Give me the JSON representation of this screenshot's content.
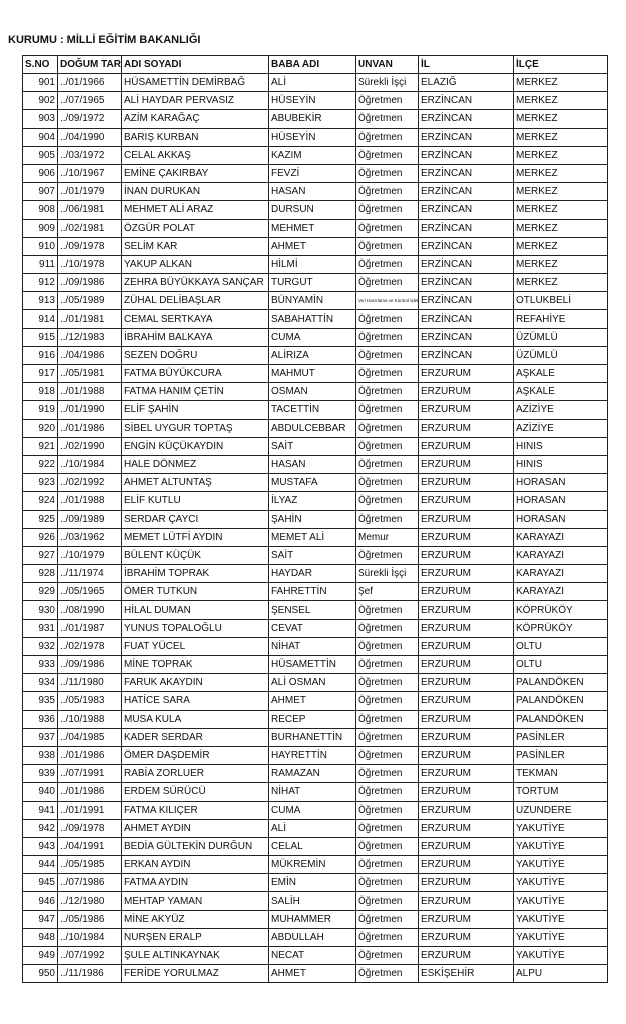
{
  "header": {
    "title": "KURUMU : MİLLİ EĞİTİM BAKANLIĞI"
  },
  "table": {
    "columns": [
      "S.NO",
      "DOĞUM TAR.",
      "ADI SOYADI",
      "BABA ADI",
      "UNVAN",
      "İL",
      "İLÇE"
    ],
    "rows": [
      [
        "901",
        "../01/1966",
        "HÜSAMETTİN DEMİRBAĞ",
        "ALİ",
        "Sürekli İşçi",
        "ELAZIĞ",
        "MERKEZ"
      ],
      [
        "902",
        "../07/1965",
        "ALİ HAYDAR PERVASIZ",
        "HÜSEYİN",
        "Öğretmen",
        "ERZİNCAN",
        "MERKEZ"
      ],
      [
        "903",
        "../09/1972",
        "AZİM KARAĞAÇ",
        "ABUBEKİR",
        "Öğretmen",
        "ERZİNCAN",
        "MERKEZ"
      ],
      [
        "904",
        "../04/1990",
        "BARIŞ KURBAN",
        "HÜSEYİN",
        "Öğretmen",
        "ERZİNCAN",
        "MERKEZ"
      ],
      [
        "905",
        "../03/1972",
        "CELAL AKKAŞ",
        "KAZIM",
        "Öğretmen",
        "ERZİNCAN",
        "MERKEZ"
      ],
      [
        "906",
        "../10/1967",
        "EMİNE ÇAKIRBAY",
        "FEVZİ",
        "Öğretmen",
        "ERZİNCAN",
        "MERKEZ"
      ],
      [
        "907",
        "../01/1979",
        "İNAN DURUKAN",
        "HASAN",
        "Öğretmen",
        "ERZİNCAN",
        "MERKEZ"
      ],
      [
        "908",
        "../06/1981",
        "MEHMET ALİ ARAZ",
        "DURSUN",
        "Öğretmen",
        "ERZİNCAN",
        "MERKEZ"
      ],
      [
        "909",
        "../02/1981",
        "ÖZGÜR POLAT",
        "MEHMET",
        "Öğretmen",
        "ERZİNCAN",
        "MERKEZ"
      ],
      [
        "910",
        "../09/1978",
        "SELİM KAR",
        "AHMET",
        "Öğretmen",
        "ERZİNCAN",
        "MERKEZ"
      ],
      [
        "911",
        "../10/1978",
        "YAKUP ALKAN",
        "HİLMİ",
        "Öğretmen",
        "ERZİNCAN",
        "MERKEZ"
      ],
      [
        "912",
        "../09/1986",
        "ZEHRA BÜYÜKKAYA SANÇAR",
        "TURGUT",
        "Öğretmen",
        "ERZİNCAN",
        "MERKEZ"
      ],
      [
        "913",
        "../05/1989",
        "ZÜHAL DELİBAŞLAR",
        "BÜNYAMİN",
        "Veri Hazırlama ve Kontrol İşletmeni",
        "ERZİNCAN",
        "OTLUKBELİ"
      ],
      [
        "914",
        "../01/1981",
        "CEMAL SERTKAYA",
        "SABAHATTİN",
        "Öğretmen",
        "ERZİNCAN",
        "REFAHİYE"
      ],
      [
        "915",
        "../12/1983",
        "İBRAHİM BALKAYA",
        "CUMA",
        "Öğretmen",
        "ERZİNCAN",
        "ÜZÜMLÜ"
      ],
      [
        "916",
        "../04/1986",
        "SEZEN DOĞRU",
        "ALİRIZA",
        "Öğretmen",
        "ERZİNCAN",
        "ÜZÜMLÜ"
      ],
      [
        "917",
        "../05/1981",
        "FATMA BÜYÜKCURA",
        "MAHMUT",
        "Öğretmen",
        "ERZURUM",
        "AŞKALE"
      ],
      [
        "918",
        "../01/1988",
        "FATMA HANIM ÇETİN",
        "OSMAN",
        "Öğretmen",
        "ERZURUM",
        "AŞKALE"
      ],
      [
        "919",
        "../01/1990",
        "ELİF ŞAHİN",
        "TACETTİN",
        "Öğretmen",
        "ERZURUM",
        "AZİZİYE"
      ],
      [
        "920",
        "../01/1986",
        "SİBEL UYGUR TOPTAŞ",
        "ABDULCEBBAR",
        "Öğretmen",
        "ERZURUM",
        "AZİZİYE"
      ],
      [
        "921",
        "../02/1990",
        "ENGİN KÜÇÜKAYDIN",
        "SAİT",
        "Öğretmen",
        "ERZURUM",
        "HINIS"
      ],
      [
        "922",
        "../10/1984",
        "HALE DÖNMEZ",
        "HASAN",
        "Öğretmen",
        "ERZURUM",
        "HINIS"
      ],
      [
        "923",
        "../02/1992",
        "AHMET ALTUNTAŞ",
        "MUSTAFA",
        "Öğretmen",
        "ERZURUM",
        "HORASAN"
      ],
      [
        "924",
        "../01/1988",
        "ELİF KUTLU",
        "İLYAZ",
        "Öğretmen",
        "ERZURUM",
        "HORASAN"
      ],
      [
        "925",
        "../09/1989",
        "SERDAR ÇAYCI",
        "ŞAHİN",
        "Öğretmen",
        "ERZURUM",
        "HORASAN"
      ],
      [
        "926",
        "../03/1962",
        "MEMET LÜTFİ AYDIN",
        "MEMET ALİ",
        "Memur",
        "ERZURUM",
        "KARAYAZI"
      ],
      [
        "927",
        "../10/1979",
        "BÜLENT KÜÇÜK",
        "SAİT",
        "Öğretmen",
        "ERZURUM",
        "KARAYAZI"
      ],
      [
        "928",
        "../11/1974",
        "İBRAHİM TOPRAK",
        "HAYDAR",
        "Sürekli İşçi",
        "ERZURUM",
        "KARAYAZI"
      ],
      [
        "929",
        "../05/1965",
        "ÖMER TUTKUN",
        "FAHRETTİN",
        "Şef",
        "ERZURUM",
        "KARAYAZI"
      ],
      [
        "930",
        "../08/1990",
        "HİLAL DUMAN",
        "ŞENSEL",
        "Öğretmen",
        "ERZURUM",
        "KÖPRÜKÖY"
      ],
      [
        "931",
        "../01/1987",
        "YUNUS TOPALOĞLU",
        "CEVAT",
        "Öğretmen",
        "ERZURUM",
        "KÖPRÜKÖY"
      ],
      [
        "932",
        "../02/1978",
        "FUAT YÜCEL",
        "NİHAT",
        "Öğretmen",
        "ERZURUM",
        "OLTU"
      ],
      [
        "933",
        "../09/1986",
        "MİNE TOPRAK",
        "HÜSAMETTİN",
        "Öğretmen",
        "ERZURUM",
        "OLTU"
      ],
      [
        "934",
        "../11/1980",
        "FARUK AKAYDIN",
        "ALİ OSMAN",
        "Öğretmen",
        "ERZURUM",
        "PALANDÖKEN"
      ],
      [
        "935",
        "../05/1983",
        "HATİCE SARA",
        "AHMET",
        "Öğretmen",
        "ERZURUM",
        "PALANDÖKEN"
      ],
      [
        "936",
        "../10/1988",
        "MUSA KULA",
        "RECEP",
        "Öğretmen",
        "ERZURUM",
        "PALANDÖKEN"
      ],
      [
        "937",
        "../04/1985",
        "KADER SERDAR",
        "BURHANETTİN",
        "Öğretmen",
        "ERZURUM",
        "PASİNLER"
      ],
      [
        "938",
        "../01/1986",
        "ÖMER DAŞDEMİR",
        "HAYRETTİN",
        "Öğretmen",
        "ERZURUM",
        "PASİNLER"
      ],
      [
        "939",
        "../07/1991",
        "RABİA ZORLUER",
        "RAMAZAN",
        "Öğretmen",
        "ERZURUM",
        "TEKMAN"
      ],
      [
        "940",
        "../01/1986",
        "ERDEM SÜRÜCÜ",
        "NİHAT",
        "Öğretmen",
        "ERZURUM",
        "TORTUM"
      ],
      [
        "941",
        "../01/1991",
        "FATMA KILIÇER",
        "CUMA",
        "Öğretmen",
        "ERZURUM",
        "UZUNDERE"
      ],
      [
        "942",
        "../09/1978",
        "AHMET AYDIN",
        "ALİ",
        "Öğretmen",
        "ERZURUM",
        "YAKUTİYE"
      ],
      [
        "943",
        "../04/1991",
        "BEDİA GÜLTEKİN DURĞUN",
        "CELAL",
        "Öğretmen",
        "ERZURUM",
        "YAKUTİYE"
      ],
      [
        "944",
        "../05/1985",
        "ERKAN AYDIN",
        "MÜKREMİN",
        "Öğretmen",
        "ERZURUM",
        "YAKUTİYE"
      ],
      [
        "945",
        "../07/1986",
        "FATMA AYDIN",
        "EMİN",
        "Öğretmen",
        "ERZURUM",
        "YAKUTİYE"
      ],
      [
        "946",
        "../12/1980",
        "MEHTAP YAMAN",
        "SALİH",
        "Öğretmen",
        "ERZURUM",
        "YAKUTİYE"
      ],
      [
        "947",
        "../05/1986",
        "MİNE AKYÜZ",
        "MUHAMMER",
        "Öğretmen",
        "ERZURUM",
        "YAKUTİYE"
      ],
      [
        "948",
        "../10/1984",
        "NURŞEN ERALP",
        "ABDULLAH",
        "Öğretmen",
        "ERZURUM",
        "YAKUTİYE"
      ],
      [
        "949",
        "../07/1992",
        "ŞULE ALTINKAYNAK",
        "NECAT",
        "Öğretmen",
        "ERZURUM",
        "YAKUTİYE"
      ],
      [
        "950",
        "../11/1986",
        "FERİDE YORULMAZ",
        "AHMET",
        "Öğretmen",
        "ESKİŞEHİR",
        "ALPU"
      ]
    ]
  }
}
